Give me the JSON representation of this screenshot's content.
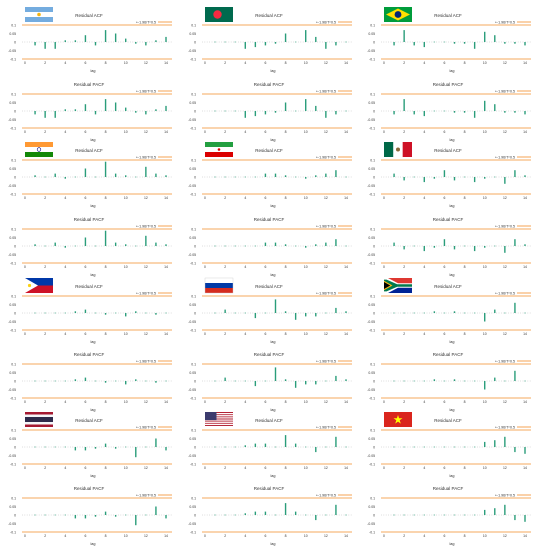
{
  "colors": {
    "bar": "#2a9d7a",
    "band": "#f28c28",
    "zero": "#9a9a9a",
    "text": "#333333",
    "frame": "#f1f1f1"
  },
  "legend_text": "+-1.96/T^0.5",
  "title_acf": "Residual ACF",
  "title_pacf": "Residual PACF",
  "xlabel": "lag",
  "yticks": [
    "0.1",
    "0.05",
    "0",
    "-0.05",
    "-0.1"
  ],
  "xticks": [
    "0",
    "2",
    "4",
    "6",
    "8",
    "10",
    "12",
    "14"
  ],
  "chart_data": [
    {
      "type": "bar",
      "flag": "argentina",
      "title": "Residual ACF",
      "xlabel": "lag",
      "x": [
        1,
        2,
        3,
        4,
        5,
        6,
        7,
        8,
        9,
        10,
        11,
        12,
        13,
        14
      ],
      "values": [
        -0.02,
        -0.04,
        -0.04,
        0.01,
        0.01,
        0.04,
        -0.02,
        0.07,
        0.05,
        0.02,
        -0.01,
        -0.02,
        0.01,
        0.03
      ],
      "ylim": [
        -0.1,
        0.1
      ],
      "band": 0.1
    },
    {
      "type": "bar",
      "flag": "argentina",
      "title": "Residual PACF",
      "xlabel": "lag",
      "x": [
        1,
        2,
        3,
        4,
        5,
        6,
        7,
        8,
        9,
        10,
        11,
        12,
        13,
        14
      ],
      "values": [
        -0.02,
        -0.04,
        -0.04,
        0.01,
        0.01,
        0.04,
        -0.02,
        0.07,
        0.05,
        0.02,
        -0.01,
        -0.02,
        0.01,
        0.03
      ],
      "ylim": [
        -0.1,
        0.1
      ],
      "band": 0.1
    },
    {
      "type": "bar",
      "flag": "bangladesh",
      "title": "Residual ACF",
      "xlabel": "lag",
      "x": [
        1,
        2,
        3,
        4,
        5,
        6,
        7,
        8,
        9,
        10,
        11,
        12,
        13,
        14
      ],
      "values": [
        0.0,
        0.0,
        0.0,
        -0.04,
        -0.03,
        -0.02,
        -0.01,
        0.05,
        0.0,
        0.07,
        0.03,
        -0.04,
        -0.02,
        0.0
      ],
      "ylim": [
        -0.1,
        0.1
      ],
      "band": 0.1
    },
    {
      "type": "bar",
      "flag": "bangladesh",
      "title": "Residual PACF",
      "xlabel": "lag",
      "x": [
        1,
        2,
        3,
        4,
        5,
        6,
        7,
        8,
        9,
        10,
        11,
        12,
        13,
        14
      ],
      "values": [
        0.0,
        0.0,
        0.0,
        -0.04,
        -0.03,
        -0.02,
        -0.01,
        0.05,
        0.0,
        0.07,
        0.03,
        -0.04,
        -0.02,
        0.0
      ],
      "ylim": [
        -0.1,
        0.1
      ],
      "band": 0.1
    },
    {
      "type": "bar",
      "flag": "brazil",
      "title": "Residual ACF",
      "xlabel": "lag",
      "x": [
        1,
        2,
        3,
        4,
        5,
        6,
        7,
        8,
        9,
        10,
        11,
        12,
        13,
        14
      ],
      "values": [
        -0.02,
        0.07,
        -0.02,
        -0.03,
        0.0,
        0.0,
        -0.01,
        -0.01,
        -0.04,
        0.06,
        0.04,
        -0.01,
        -0.01,
        -0.02
      ],
      "ylim": [
        -0.1,
        0.1
      ],
      "band": 0.1
    },
    {
      "type": "bar",
      "flag": "brazil",
      "title": "Residual PACF",
      "xlabel": "lag",
      "x": [
        1,
        2,
        3,
        4,
        5,
        6,
        7,
        8,
        9,
        10,
        11,
        12,
        13,
        14
      ],
      "values": [
        -0.02,
        0.07,
        -0.02,
        -0.03,
        0.0,
        0.0,
        -0.01,
        -0.01,
        -0.04,
        0.06,
        0.04,
        -0.01,
        -0.01,
        -0.02
      ],
      "ylim": [
        -0.1,
        0.1
      ],
      "band": 0.1
    },
    {
      "type": "bar",
      "flag": "india",
      "title": "Residual ACF",
      "xlabel": "lag",
      "x": [
        1,
        2,
        3,
        4,
        5,
        6,
        7,
        8,
        9,
        10,
        11,
        12,
        13,
        14
      ],
      "values": [
        0.01,
        0.0,
        0.02,
        -0.01,
        0.0,
        0.05,
        0.0,
        0.09,
        0.02,
        0.01,
        0.0,
        0.06,
        0.02,
        0.01
      ],
      "ylim": [
        -0.1,
        0.1
      ],
      "band": 0.1
    },
    {
      "type": "bar",
      "flag": "india",
      "title": "Residual PACF",
      "xlabel": "lag",
      "x": [
        1,
        2,
        3,
        4,
        5,
        6,
        7,
        8,
        9,
        10,
        11,
        12,
        13,
        14
      ],
      "values": [
        0.01,
        0.0,
        0.02,
        -0.01,
        0.0,
        0.05,
        0.0,
        0.09,
        0.02,
        0.01,
        0.0,
        0.06,
        0.02,
        0.01
      ],
      "ylim": [
        -0.1,
        0.1
      ],
      "band": 0.1
    },
    {
      "type": "bar",
      "flag": "iran",
      "title": "Residual ACF",
      "xlabel": "lag",
      "x": [
        1,
        2,
        3,
        4,
        5,
        6,
        7,
        8,
        9,
        10,
        11,
        12,
        13,
        14
      ],
      "values": [
        0.0,
        0.0,
        0.0,
        0.0,
        0.0,
        0.02,
        0.02,
        0.01,
        0.0,
        -0.01,
        0.01,
        0.02,
        0.04,
        0.0
      ],
      "ylim": [
        -0.1,
        0.1
      ],
      "band": 0.1
    },
    {
      "type": "bar",
      "flag": "iran",
      "title": "Residual PACF",
      "xlabel": "lag",
      "x": [
        1,
        2,
        3,
        4,
        5,
        6,
        7,
        8,
        9,
        10,
        11,
        12,
        13,
        14
      ],
      "values": [
        0.0,
        0.0,
        0.0,
        0.0,
        0.0,
        0.02,
        0.02,
        0.01,
        0.0,
        -0.01,
        0.01,
        0.02,
        0.04,
        0.0
      ],
      "ylim": [
        -0.1,
        0.1
      ],
      "band": 0.1
    },
    {
      "type": "bar",
      "flag": "mexico",
      "title": "Residual ACF",
      "xlabel": "lag",
      "x": [
        1,
        2,
        3,
        4,
        5,
        6,
        7,
        8,
        9,
        10,
        11,
        12,
        13,
        14
      ],
      "values": [
        0.02,
        -0.02,
        0.0,
        -0.03,
        -0.01,
        0.04,
        -0.02,
        0.0,
        -0.03,
        -0.01,
        0.0,
        -0.04,
        0.04,
        0.01
      ],
      "ylim": [
        -0.1,
        0.1
      ],
      "band": 0.1
    },
    {
      "type": "bar",
      "flag": "mexico",
      "title": "Residual PACF",
      "xlabel": "lag",
      "x": [
        1,
        2,
        3,
        4,
        5,
        6,
        7,
        8,
        9,
        10,
        11,
        12,
        13,
        14
      ],
      "values": [
        0.02,
        -0.02,
        0.0,
        -0.03,
        -0.01,
        0.04,
        -0.02,
        0.0,
        -0.03,
        -0.01,
        0.0,
        -0.04,
        0.04,
        0.01
      ],
      "ylim": [
        -0.1,
        0.1
      ],
      "band": 0.1
    },
    {
      "type": "bar",
      "flag": "philippines",
      "title": "Residual ACF",
      "xlabel": "lag",
      "x": [
        1,
        2,
        3,
        4,
        5,
        6,
        7,
        8,
        9,
        10,
        11,
        12,
        13,
        14
      ],
      "values": [
        0.0,
        0.0,
        0.0,
        0.0,
        0.01,
        0.02,
        0.0,
        -0.01,
        0.0,
        -0.02,
        0.01,
        0.0,
        -0.01,
        0.0
      ],
      "ylim": [
        -0.1,
        0.1
      ],
      "band": 0.1
    },
    {
      "type": "bar",
      "flag": "philippines",
      "title": "Residual PACF",
      "xlabel": "lag",
      "x": [
        1,
        2,
        3,
        4,
        5,
        6,
        7,
        8,
        9,
        10,
        11,
        12,
        13,
        14
      ],
      "values": [
        0.0,
        0.0,
        0.0,
        0.0,
        0.01,
        0.02,
        0.0,
        -0.01,
        0.0,
        -0.02,
        0.01,
        0.0,
        -0.01,
        0.0
      ],
      "ylim": [
        -0.1,
        0.1
      ],
      "band": 0.1
    },
    {
      "type": "bar",
      "flag": "russia",
      "title": "Residual ACF",
      "xlabel": "lag",
      "x": [
        1,
        2,
        3,
        4,
        5,
        6,
        7,
        8,
        9,
        10,
        11,
        12,
        13,
        14
      ],
      "values": [
        0.0,
        0.02,
        0.0,
        0.0,
        -0.03,
        0.0,
        0.08,
        0.01,
        -0.04,
        -0.02,
        -0.02,
        0.0,
        0.03,
        0.01
      ],
      "ylim": [
        -0.1,
        0.1
      ],
      "band": 0.1
    },
    {
      "type": "bar",
      "flag": "russia",
      "title": "Residual PACF",
      "xlabel": "lag",
      "x": [
        1,
        2,
        3,
        4,
        5,
        6,
        7,
        8,
        9,
        10,
        11,
        12,
        13,
        14
      ],
      "values": [
        0.0,
        0.02,
        0.0,
        0.0,
        -0.03,
        0.0,
        0.08,
        0.01,
        -0.04,
        -0.02,
        -0.02,
        0.0,
        0.03,
        0.01
      ],
      "ylim": [
        -0.1,
        0.1
      ],
      "band": 0.1
    },
    {
      "type": "bar",
      "flag": "south-africa",
      "title": "Residual ACF",
      "xlabel": "lag",
      "x": [
        1,
        2,
        3,
        4,
        5,
        6,
        7,
        8,
        9,
        10,
        11,
        12,
        13,
        14
      ],
      "values": [
        0.0,
        0.0,
        0.0,
        0.0,
        0.01,
        0.0,
        0.01,
        0.0,
        0.0,
        -0.05,
        0.02,
        0.0,
        0.06,
        0.0
      ],
      "ylim": [
        -0.1,
        0.1
      ],
      "band": 0.1
    },
    {
      "type": "bar",
      "flag": "south-africa",
      "title": "Residual PACF",
      "xlabel": "lag",
      "x": [
        1,
        2,
        3,
        4,
        5,
        6,
        7,
        8,
        9,
        10,
        11,
        12,
        13,
        14
      ],
      "values": [
        0.0,
        0.0,
        0.0,
        0.0,
        0.01,
        0.0,
        0.01,
        0.0,
        0.0,
        -0.05,
        0.02,
        0.0,
        0.06,
        0.0
      ],
      "ylim": [
        -0.1,
        0.1
      ],
      "band": 0.1
    },
    {
      "type": "bar",
      "flag": "thailand",
      "title": "Residual ACF",
      "xlabel": "lag",
      "x": [
        1,
        2,
        3,
        4,
        5,
        6,
        7,
        8,
        9,
        10,
        11,
        12,
        13,
        14
      ],
      "values": [
        0.0,
        0.0,
        0.0,
        0.0,
        -0.02,
        -0.02,
        -0.01,
        0.02,
        -0.01,
        0.0,
        -0.06,
        0.0,
        0.05,
        -0.02
      ],
      "ylim": [
        -0.1,
        0.1
      ],
      "band": 0.1
    },
    {
      "type": "bar",
      "flag": "thailand",
      "title": "Residual PACF",
      "xlabel": "lag",
      "x": [
        1,
        2,
        3,
        4,
        5,
        6,
        7,
        8,
        9,
        10,
        11,
        12,
        13,
        14
      ],
      "values": [
        0.0,
        0.0,
        0.0,
        0.0,
        -0.02,
        -0.02,
        -0.01,
        0.02,
        -0.01,
        0.0,
        -0.06,
        0.0,
        0.05,
        -0.02
      ],
      "ylim": [
        -0.1,
        0.1
      ],
      "band": 0.1
    },
    {
      "type": "bar",
      "flag": "usa",
      "title": "Residual ACF",
      "xlabel": "lag",
      "x": [
        1,
        2,
        3,
        4,
        5,
        6,
        7,
        8,
        9,
        10,
        11,
        12,
        13,
        14
      ],
      "values": [
        0.0,
        0.0,
        0.0,
        0.01,
        0.02,
        0.02,
        0.0,
        0.07,
        0.02,
        0.0,
        -0.03,
        0.0,
        0.06,
        0.0
      ],
      "ylim": [
        -0.1,
        0.1
      ],
      "band": 0.1
    },
    {
      "type": "bar",
      "flag": "usa",
      "title": "Residual PACF",
      "xlabel": "lag",
      "x": [
        1,
        2,
        3,
        4,
        5,
        6,
        7,
        8,
        9,
        10,
        11,
        12,
        13,
        14
      ],
      "values": [
        0.0,
        0.0,
        0.0,
        0.01,
        0.02,
        0.02,
        0.0,
        0.07,
        0.02,
        0.0,
        -0.03,
        0.0,
        0.06,
        0.0
      ],
      "ylim": [
        -0.1,
        0.1
      ],
      "band": 0.1
    },
    {
      "type": "bar",
      "flag": "vietnam",
      "title": "Residual ACF",
      "xlabel": "lag",
      "x": [
        1,
        2,
        3,
        4,
        5,
        6,
        7,
        8,
        9,
        10,
        11,
        12,
        13,
        14
      ],
      "values": [
        0.0,
        0.0,
        0.0,
        0.0,
        0.0,
        0.0,
        0.0,
        0.0,
        0.0,
        0.03,
        0.04,
        0.06,
        -0.03,
        -0.04
      ],
      "ylim": [
        -0.1,
        0.1
      ],
      "band": 0.1
    },
    {
      "type": "bar",
      "flag": "vietnam",
      "title": "Residual PACF",
      "xlabel": "lag",
      "x": [
        1,
        2,
        3,
        4,
        5,
        6,
        7,
        8,
        9,
        10,
        11,
        12,
        13,
        14
      ],
      "values": [
        0.0,
        0.0,
        0.0,
        0.0,
        0.0,
        0.0,
        0.0,
        0.0,
        0.0,
        0.03,
        0.04,
        0.06,
        -0.03,
        -0.04
      ],
      "ylim": [
        -0.1,
        0.1
      ],
      "band": 0.1
    }
  ]
}
